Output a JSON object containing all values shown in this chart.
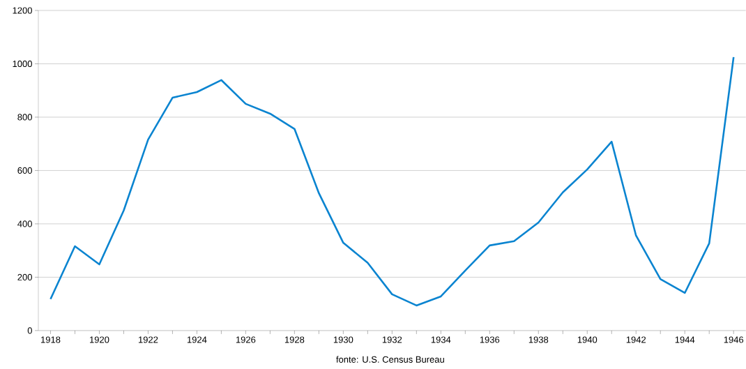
{
  "chart_data": {
    "type": "line",
    "x": [
      1918,
      1919,
      1920,
      1921,
      1922,
      1923,
      1924,
      1925,
      1926,
      1927,
      1928,
      1929,
      1930,
      1931,
      1932,
      1933,
      1934,
      1935,
      1936,
      1937,
      1938,
      1939,
      1940,
      1941,
      1942,
      1943,
      1944,
      1945,
      1946
    ],
    "series": [
      {
        "color": "#0a84d0",
        "values": [
          118,
          316,
          248,
          450,
          716,
          873,
          894,
          939,
          850,
          813,
          756,
          515,
          329,
          254,
          136,
          94,
          128,
          225,
          319,
          335,
          405,
          518,
          604,
          708,
          356,
          193,
          141,
          327,
          1025
        ]
      }
    ],
    "xlim": [
      1917.5,
      1946.5
    ],
    "ylim": [
      0,
      1200
    ],
    "xticks": [
      1918,
      {
        "value": 1919,
        "label": null
      },
      1920,
      {
        "value": 1921,
        "label": null
      },
      1922,
      {
        "value": 1923,
        "label": null
      },
      1924,
      {
        "value": 1925,
        "label": null
      },
      1926,
      {
        "value": 1927,
        "label": null
      },
      1928,
      {
        "value": 1929,
        "label": null
      },
      1930,
      {
        "value": 1931,
        "label": null
      },
      1932,
      {
        "value": 1933,
        "label": null
      },
      1934,
      {
        "value": 1935,
        "label": null
      },
      1936,
      {
        "value": 1937,
        "label": null
      },
      1938,
      {
        "value": 1939,
        "label": null
      },
      1940,
      {
        "value": 1941,
        "label": null
      },
      1942,
      {
        "value": 1943,
        "label": null
      },
      1944,
      {
        "value": 1945,
        "label": null
      },
      1946
    ],
    "yticks": [
      0,
      200,
      400,
      600,
      800,
      1000,
      1200
    ],
    "grid": "y",
    "annotations": [
      "fonte: U.S. Census Bureau"
    ]
  }
}
